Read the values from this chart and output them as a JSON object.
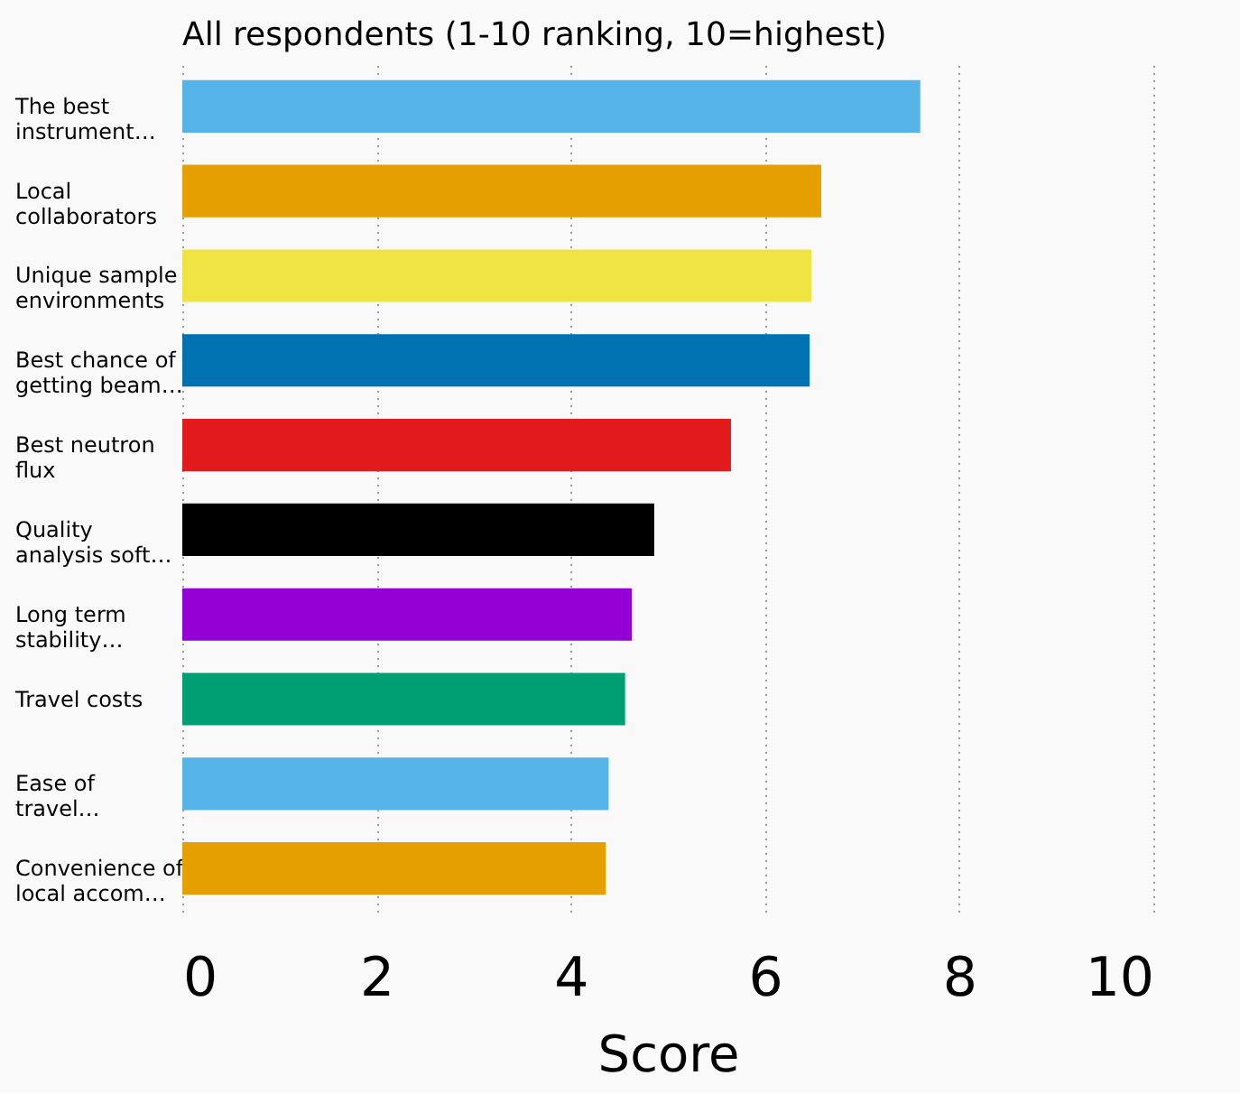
{
  "chart_data": {
    "type": "bar",
    "orientation": "horizontal",
    "title": "All respondents (1-10 ranking, 10=highest)",
    "xlabel": "Score",
    "categories": [
      "The best\ninstrument…",
      "Local\ncollaborators",
      "Unique sample\nenvironments",
      "Best chance of\ngetting beam…",
      "Best neutron\nflux",
      "Quality\nanalysis soft…",
      "Long term\nstability…",
      "Travel costs",
      "Ease of\ntravel…",
      "Convenience of\nlocal accom…"
    ],
    "values": [
      7.6,
      6.58,
      6.48,
      6.46,
      5.65,
      4.86,
      4.63,
      4.56,
      4.39,
      4.36
    ],
    "colors": [
      "#56b4e9",
      "#e69f00",
      "#f0e442",
      "#0072b2",
      "#e31a1c",
      "#000000",
      "#9400d3",
      "#009e73",
      "#56b4e9",
      "#e69f00"
    ],
    "xlim": [
      0,
      10
    ],
    "xticks": [
      0,
      2,
      4,
      6,
      8,
      10
    ],
    "grid": "x"
  }
}
